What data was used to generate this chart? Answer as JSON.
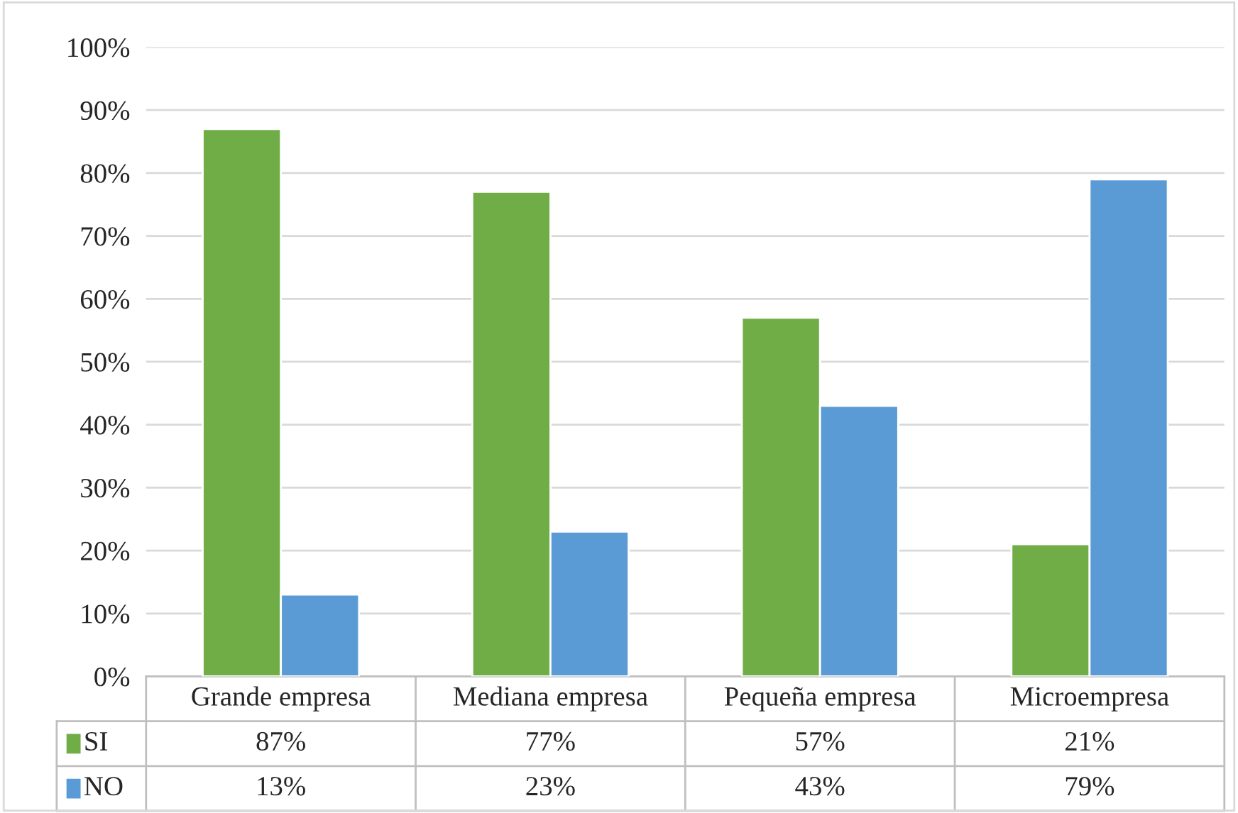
{
  "chart_data": {
    "type": "bar",
    "categories": [
      "Grande empresa",
      "Mediana empresa",
      "Pequeña empresa",
      "Microempresa"
    ],
    "series": [
      {
        "name": "SI",
        "color": "#70ad47",
        "values": [
          87,
          77,
          57,
          21
        ],
        "value_labels": [
          "87%",
          "77%",
          "57%",
          "21%"
        ]
      },
      {
        "name": "NO",
        "color": "#5b9bd5",
        "values": [
          13,
          23,
          43,
          79
        ],
        "value_labels": [
          "13%",
          "23%",
          "43%",
          "79%"
        ]
      }
    ],
    "ylim": [
      0,
      100
    ],
    "yticks": [
      {
        "value": 0,
        "label": "0%"
      },
      {
        "value": 10,
        "label": "10%"
      },
      {
        "value": 20,
        "label": "20%"
      },
      {
        "value": 30,
        "label": "30%"
      },
      {
        "value": 40,
        "label": "40%"
      },
      {
        "value": 50,
        "label": "50%"
      },
      {
        "value": 60,
        "label": "60%"
      },
      {
        "value": 70,
        "label": "70%"
      },
      {
        "value": 80,
        "label": "80%"
      },
      {
        "value": 90,
        "label": "90%"
      },
      {
        "value": 100,
        "label": "100%"
      }
    ],
    "grid": "y",
    "legend": "bottom"
  }
}
